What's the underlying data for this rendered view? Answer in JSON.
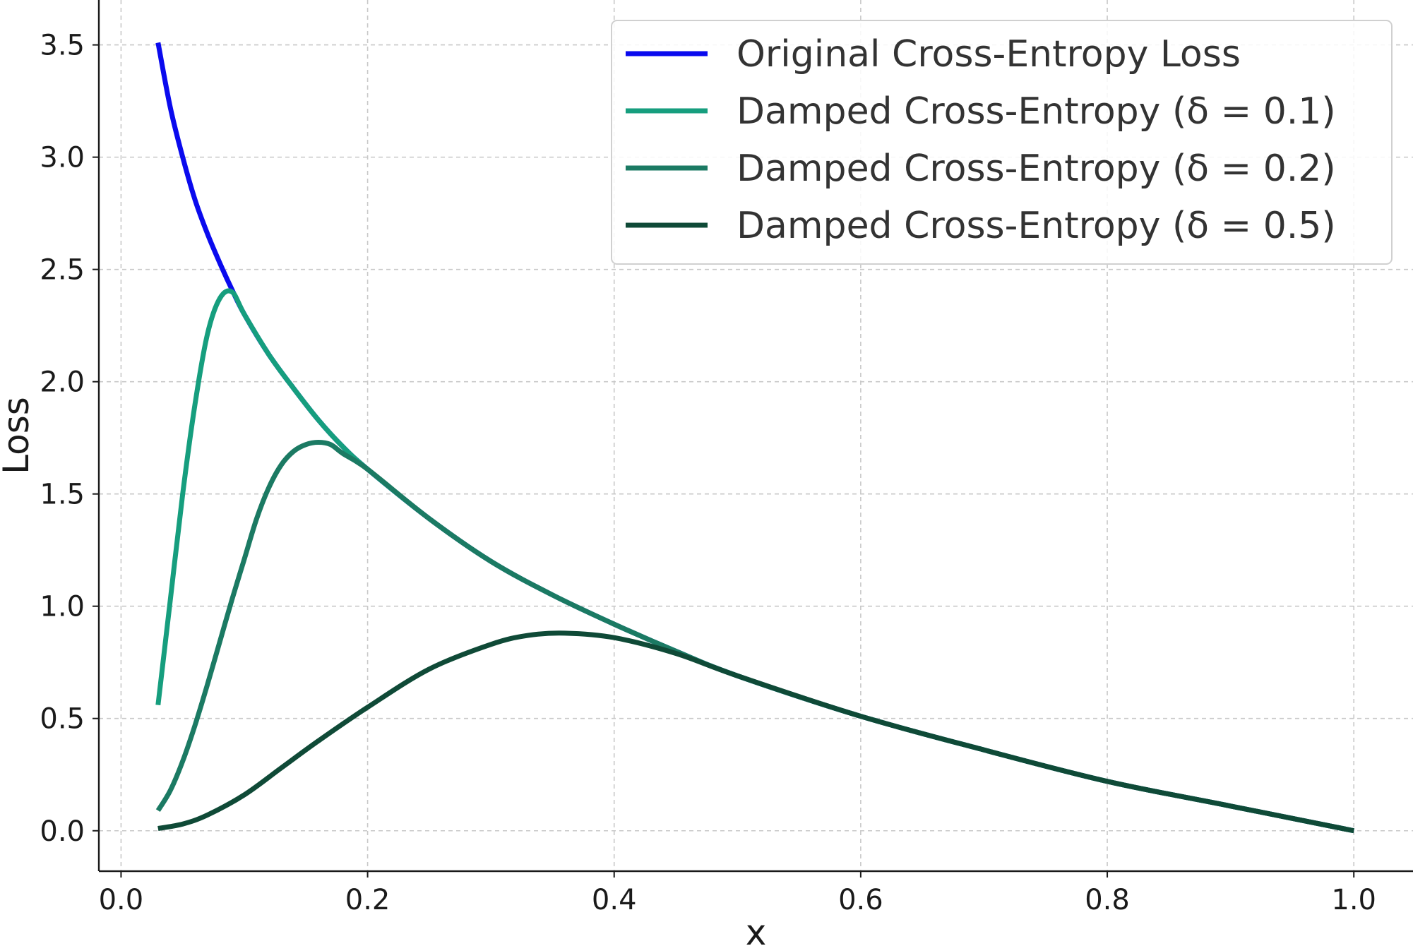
{
  "chart_data": {
    "type": "line",
    "title": "",
    "xlabel": "x",
    "ylabel": "Loss",
    "xlim": [
      -0.018,
      1.048
    ],
    "ylim": [
      -0.18,
      3.7
    ],
    "xticks": [
      0.0,
      0.2,
      0.4,
      0.6,
      0.8,
      1.0
    ],
    "xtick_labels": [
      "0.0",
      "0.2",
      "0.4",
      "0.6",
      "0.8",
      "1.0"
    ],
    "yticks": [
      0.0,
      0.5,
      1.0,
      1.5,
      2.0,
      2.5,
      3.0,
      3.5
    ],
    "ytick_labels": [
      "0.0",
      "0.5",
      "1.0",
      "1.5",
      "2.0",
      "2.5",
      "3.0",
      "3.5"
    ],
    "grid": true,
    "legend_position": "top-right",
    "series": [
      {
        "name": "Original Cross-Entropy Loss",
        "color": "#0a0aee",
        "x": [
          0.03,
          0.04,
          0.05,
          0.06,
          0.07,
          0.08,
          0.09,
          0.1,
          0.12,
          0.14,
          0.16,
          0.18,
          0.2,
          0.25,
          0.3,
          0.35,
          0.4,
          0.45,
          0.5,
          0.6,
          0.7,
          0.8,
          0.9,
          1.0
        ],
        "y": [
          3.51,
          3.22,
          3.0,
          2.81,
          2.66,
          2.53,
          2.41,
          2.3,
          2.12,
          1.97,
          1.83,
          1.71,
          1.61,
          1.39,
          1.2,
          1.05,
          0.92,
          0.8,
          0.69,
          0.51,
          0.36,
          0.22,
          0.11,
          0.0
        ]
      },
      {
        "name": "Damped Cross-Entropy (δ = 0.1)",
        "color": "#169e7e",
        "x": [
          0.03,
          0.04,
          0.05,
          0.06,
          0.07,
          0.08,
          0.09,
          0.1,
          0.12,
          0.14,
          0.16,
          0.18,
          0.2,
          0.25,
          0.3,
          0.35,
          0.4,
          0.45,
          0.5,
          0.6,
          0.7,
          0.8,
          0.9,
          1.0
        ],
        "y": [
          0.56,
          1.03,
          1.5,
          1.9,
          2.21,
          2.37,
          2.4,
          2.3,
          2.12,
          1.97,
          1.83,
          1.71,
          1.61,
          1.39,
          1.2,
          1.05,
          0.92,
          0.8,
          0.69,
          0.51,
          0.36,
          0.22,
          0.11,
          0.0
        ]
      },
      {
        "name": "Damped Cross-Entropy (δ = 0.2)",
        "color": "#1b7a63",
        "x": [
          0.03,
          0.04,
          0.05,
          0.06,
          0.07,
          0.08,
          0.09,
          0.1,
          0.11,
          0.12,
          0.13,
          0.14,
          0.15,
          0.16,
          0.17,
          0.18,
          0.2,
          0.25,
          0.3,
          0.35,
          0.4,
          0.45,
          0.5,
          0.6,
          0.7,
          0.8,
          0.9,
          1.0
        ],
        "y": [
          0.09,
          0.18,
          0.31,
          0.47,
          0.65,
          0.84,
          1.03,
          1.21,
          1.39,
          1.53,
          1.63,
          1.69,
          1.72,
          1.73,
          1.72,
          1.68,
          1.61,
          1.39,
          1.2,
          1.05,
          0.92,
          0.8,
          0.69,
          0.51,
          0.36,
          0.22,
          0.11,
          0.0
        ]
      },
      {
        "name": "Damped Cross-Entropy (δ = 0.5)",
        "color": "#0f4a37",
        "x": [
          0.03,
          0.05,
          0.07,
          0.1,
          0.13,
          0.16,
          0.2,
          0.25,
          0.3,
          0.33,
          0.36,
          0.4,
          0.45,
          0.5,
          0.6,
          0.7,
          0.8,
          0.9,
          1.0
        ],
        "y": [
          0.01,
          0.03,
          0.07,
          0.16,
          0.28,
          0.4,
          0.55,
          0.72,
          0.83,
          0.87,
          0.88,
          0.86,
          0.79,
          0.69,
          0.51,
          0.36,
          0.22,
          0.11,
          0.0
        ]
      }
    ]
  }
}
